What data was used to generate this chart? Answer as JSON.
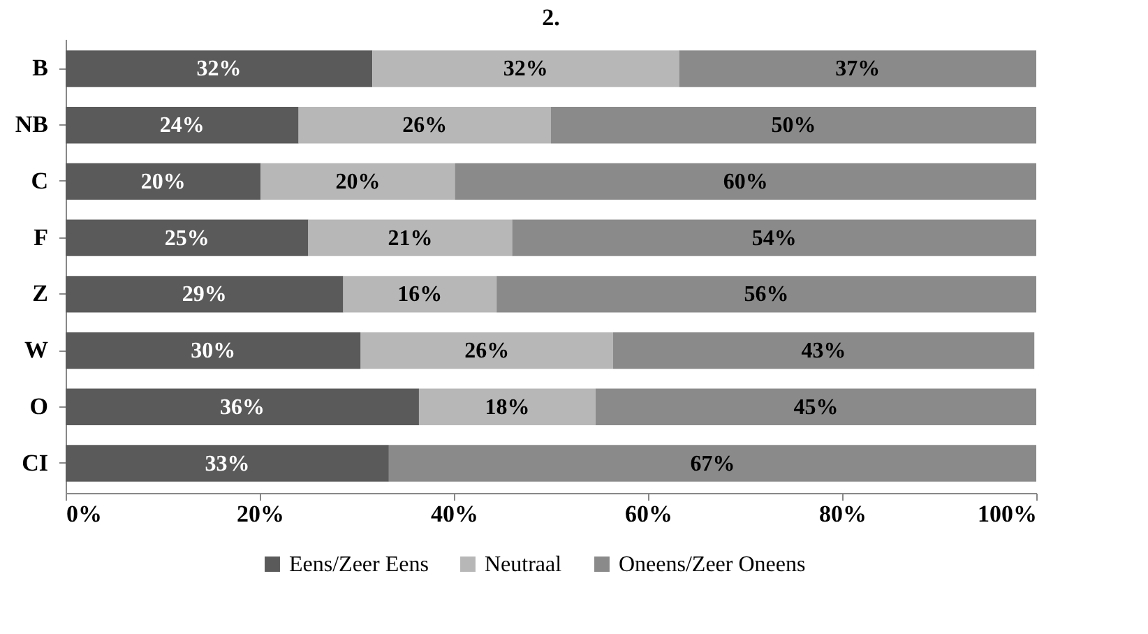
{
  "chart_data": {
    "type": "bar",
    "title": "2.",
    "orientation": "horizontal",
    "stacked": true,
    "categories": [
      "B",
      "NB",
      "C",
      "F",
      "Z",
      "W",
      "O",
      "CI"
    ],
    "series": [
      {
        "name": "Eens/Zeer Eens",
        "color": "#5a5a5a",
        "values": [
          31.6,
          24,
          20.1,
          25,
          28.6,
          30.4,
          36.4,
          33.3
        ],
        "value_labels": [
          "32%",
          "24%",
          "20%",
          "25%",
          "29%",
          "30%",
          "36%",
          "33%"
        ]
      },
      {
        "name": "Neutraal",
        "color": "#b7b7b7",
        "values": [
          31.6,
          26,
          20,
          21,
          15.8,
          26,
          18.2,
          null
        ],
        "value_labels": [
          "32%",
          "26%",
          "20%",
          "21%",
          "16%",
          "26%",
          "18%",
          null
        ]
      },
      {
        "name": "Oneens/Zeer Oneens",
        "color": "#8a8a8a",
        "values": [
          36.8,
          50,
          59.9,
          54,
          55.6,
          43.4,
          45.4,
          66.7
        ],
        "value_labels": [
          "37%",
          "50%",
          "60%",
          "54%",
          "56%",
          "43%",
          "45%",
          "67%"
        ]
      }
    ],
    "xlim": [
      0,
      100
    ],
    "xticks": [
      {
        "value": 0,
        "label": "0%"
      },
      {
        "value": 20,
        "label": "20%"
      },
      {
        "value": 40,
        "label": "40%"
      },
      {
        "value": 60,
        "label": "60%"
      },
      {
        "value": 80,
        "label": "80%"
      },
      {
        "value": 100,
        "label": "100%"
      }
    ],
    "legend": "bottom",
    "grid": false
  }
}
